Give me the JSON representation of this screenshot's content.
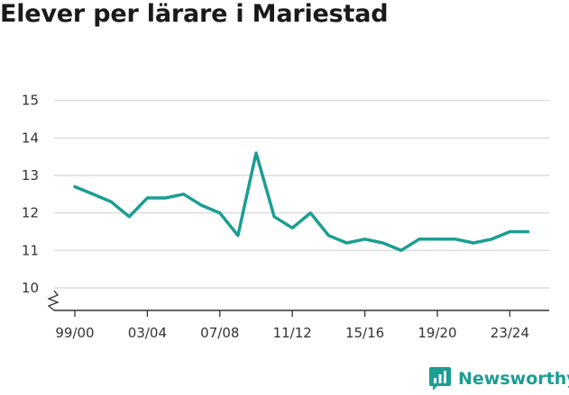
{
  "title": "Elever per lärare i Mariestad",
  "brand": {
    "name": "Newsworthy",
    "icon": "newsworthy-logo-icon",
    "color": "#1b9e94"
  },
  "chart_data": {
    "type": "line",
    "title": "Elever per lärare i Mariestad",
    "xlabel": "",
    "ylabel": "",
    "ylim": [
      9.4,
      15.4
    ],
    "yticks": [
      10,
      11,
      12,
      13,
      14,
      15
    ],
    "y_axis_break": true,
    "grid": true,
    "x_tick_labels": [
      "99/00",
      "03/04",
      "07/08",
      "11/12",
      "15/16",
      "19/20",
      "23/24"
    ],
    "x": [
      "99/00",
      "00/01",
      "01/02",
      "02/03",
      "03/04",
      "04/05",
      "05/06",
      "06/07",
      "07/08",
      "08/09",
      "09/10",
      "10/11",
      "11/12",
      "12/13",
      "13/14",
      "14/15",
      "15/16",
      "16/17",
      "17/18",
      "18/19",
      "19/20",
      "20/21",
      "21/22",
      "22/23",
      "23/24",
      "24/25"
    ],
    "series": [
      {
        "color": "#1b9e94",
        "values": [
          12.7,
          12.5,
          12.3,
          11.9,
          12.4,
          12.4,
          12.5,
          12.2,
          12.0,
          11.4,
          13.6,
          11.9,
          11.6,
          12.0,
          11.4,
          11.2,
          11.3,
          11.2,
          11.0,
          11.3,
          11.3,
          11.3,
          11.2,
          11.3,
          11.5,
          11.5
        ]
      }
    ]
  }
}
